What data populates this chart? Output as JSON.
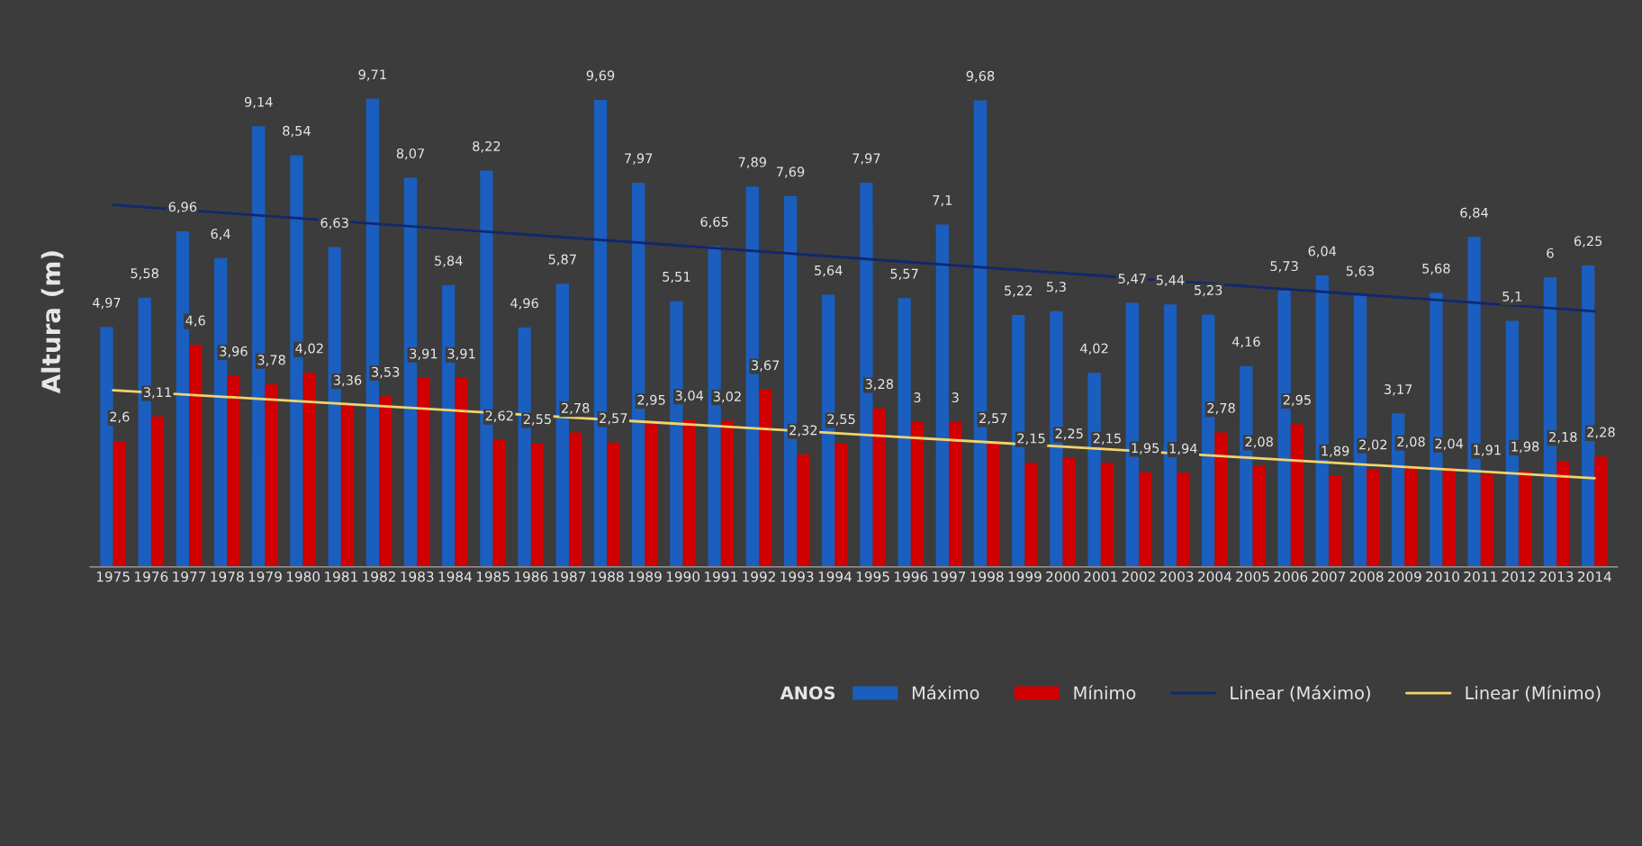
{
  "chart_data": {
    "type": "bar",
    "annotations": [
      "ANOS"
    ],
    "ylabel": "Altura (m)",
    "categories": [
      "1975",
      "1976",
      "1977",
      "1978",
      "1979",
      "1980",
      "1981",
      "1982",
      "1983",
      "1984",
      "1985",
      "1986",
      "1987",
      "1988",
      "1989",
      "1990",
      "1991",
      "1992",
      "1993",
      "1994",
      "1995",
      "1996",
      "1997",
      "1998",
      "1999",
      "2000",
      "2001",
      "2002",
      "2003",
      "2004",
      "2005",
      "2006",
      "2007",
      "2008",
      "2009",
      "2010",
      "2011",
      "2012",
      "2013",
      "2014"
    ],
    "series": [
      {
        "name": "Máximo",
        "color": "#1a5fbf",
        "values": [
          4.97,
          5.58,
          6.96,
          6.4,
          9.14,
          8.54,
          6.63,
          9.71,
          8.07,
          5.84,
          8.22,
          4.96,
          5.87,
          9.69,
          7.97,
          5.51,
          6.65,
          7.89,
          7.69,
          5.64,
          7.97,
          5.57,
          7.1,
          9.68,
          5.22,
          5.3,
          4.02,
          5.47,
          5.44,
          5.23,
          4.16,
          5.73,
          6.04,
          5.63,
          3.17,
          5.68,
          6.84,
          5.1,
          6,
          6.25
        ],
        "value_labels": [
          "4,97",
          "5,58",
          "6,96",
          "6,4",
          "9,14",
          "8,54",
          "6,63",
          "9,71",
          "8,07",
          "5,84",
          "8,22",
          "4,96",
          "5,87",
          "9,69",
          "7,97",
          "5,51",
          "6,65",
          "7,89",
          "7,69",
          "5,64",
          "7,97",
          "5,57",
          "7,1",
          "9,68",
          "5,22",
          "5,3",
          "4,02",
          "5,47",
          "5,44",
          "5,23",
          "4,16",
          "5,73",
          "6,04",
          "5,63",
          "3,17",
          "5,68",
          "6,84",
          "5,1",
          "6",
          "6,25"
        ]
      },
      {
        "name": "Mínimo",
        "color": "#d00000",
        "values": [
          2.6,
          3.11,
          4.6,
          3.96,
          3.78,
          4.02,
          3.36,
          3.53,
          3.91,
          3.91,
          2.62,
          2.55,
          2.78,
          2.57,
          2.95,
          3.04,
          3.02,
          3.67,
          2.32,
          2.55,
          3.28,
          3,
          3,
          2.57,
          2.15,
          2.25,
          2.15,
          1.95,
          1.94,
          2.78,
          2.08,
          2.95,
          1.89,
          2.02,
          2.08,
          2.04,
          1.91,
          1.98,
          2.18,
          2.28
        ],
        "value_labels": [
          "2,6",
          "3,11",
          "4,6",
          "3,96",
          "3,78",
          "4,02",
          "3,36",
          "3,53",
          "3,91",
          "3,91",
          "2,62",
          "2,55",
          "2,78",
          "2,57",
          "2,95",
          "3,04",
          "3,02",
          "3,67",
          "2,32",
          "2,55",
          "3,28",
          "3",
          "3",
          "2,57",
          "2,15",
          "2,25",
          "2,15",
          "1,95",
          "1,94",
          "2,78",
          "2,08",
          "2,95",
          "1,89",
          "2,02",
          "2,08",
          "2,04",
          "1,91",
          "1,98",
          "2,18",
          "2,28"
        ]
      },
      {
        "name": "Linear (Máximo)",
        "type": "line",
        "color": "#10286e",
        "values": [
          7.52,
          null,
          null,
          null,
          null,
          null,
          null,
          null,
          null,
          null,
          null,
          null,
          null,
          null,
          null,
          null,
          null,
          null,
          null,
          null,
          null,
          null,
          null,
          null,
          null,
          null,
          null,
          null,
          null,
          null,
          null,
          null,
          null,
          null,
          null,
          null,
          null,
          null,
          null,
          5.31
        ]
      },
      {
        "name": "Linear (Mínimo)",
        "type": "line",
        "color": "#f2d36b",
        "values": [
          3.67,
          null,
          null,
          null,
          null,
          null,
          null,
          null,
          null,
          null,
          null,
          null,
          null,
          null,
          null,
          null,
          null,
          null,
          null,
          null,
          null,
          null,
          null,
          null,
          null,
          null,
          null,
          null,
          null,
          null,
          null,
          null,
          null,
          null,
          null,
          null,
          null,
          null,
          null,
          1.84
        ]
      }
    ],
    "legend": "bottom right",
    "grid": false
  }
}
